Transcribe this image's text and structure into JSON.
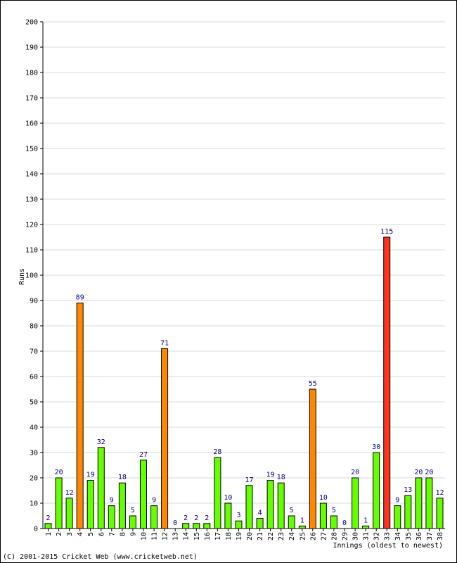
{
  "chart_data": {
    "type": "bar",
    "xlabel": "Innings (oldest to newest)",
    "ylabel": "Runs",
    "ylim": [
      0,
      200
    ],
    "yticks": [
      0,
      10,
      20,
      30,
      40,
      50,
      60,
      70,
      80,
      90,
      100,
      110,
      120,
      130,
      140,
      150,
      160,
      170,
      180,
      190,
      200
    ],
    "grid": true,
    "categories": [
      "1",
      "2",
      "3",
      "4",
      "5",
      "6",
      "7",
      "8",
      "9",
      "10",
      "11",
      "12",
      "13",
      "14",
      "15",
      "16",
      "17",
      "18",
      "19",
      "20",
      "21",
      "22",
      "23",
      "24",
      "25",
      "26",
      "27",
      "28",
      "29",
      "30",
      "31",
      "32",
      "33",
      "34",
      "35",
      "36",
      "37",
      "38"
    ],
    "values": [
      2,
      20,
      12,
      89,
      19,
      32,
      9,
      18,
      5,
      27,
      9,
      71,
      0,
      2,
      2,
      2,
      28,
      10,
      3,
      17,
      4,
      19,
      18,
      5,
      1,
      55,
      10,
      5,
      0,
      20,
      1,
      30,
      115,
      9,
      13,
      20,
      20,
      12
    ],
    "colors": {
      "under_50": "#66ff00",
      "fifty": "#ff8800",
      "hundred": "#ff3322",
      "label": "#000080",
      "grid": "#d8d8d8"
    }
  },
  "footer": {
    "copyright": "(C) 2001-2015 Cricket Web (www.cricketweb.net)"
  }
}
